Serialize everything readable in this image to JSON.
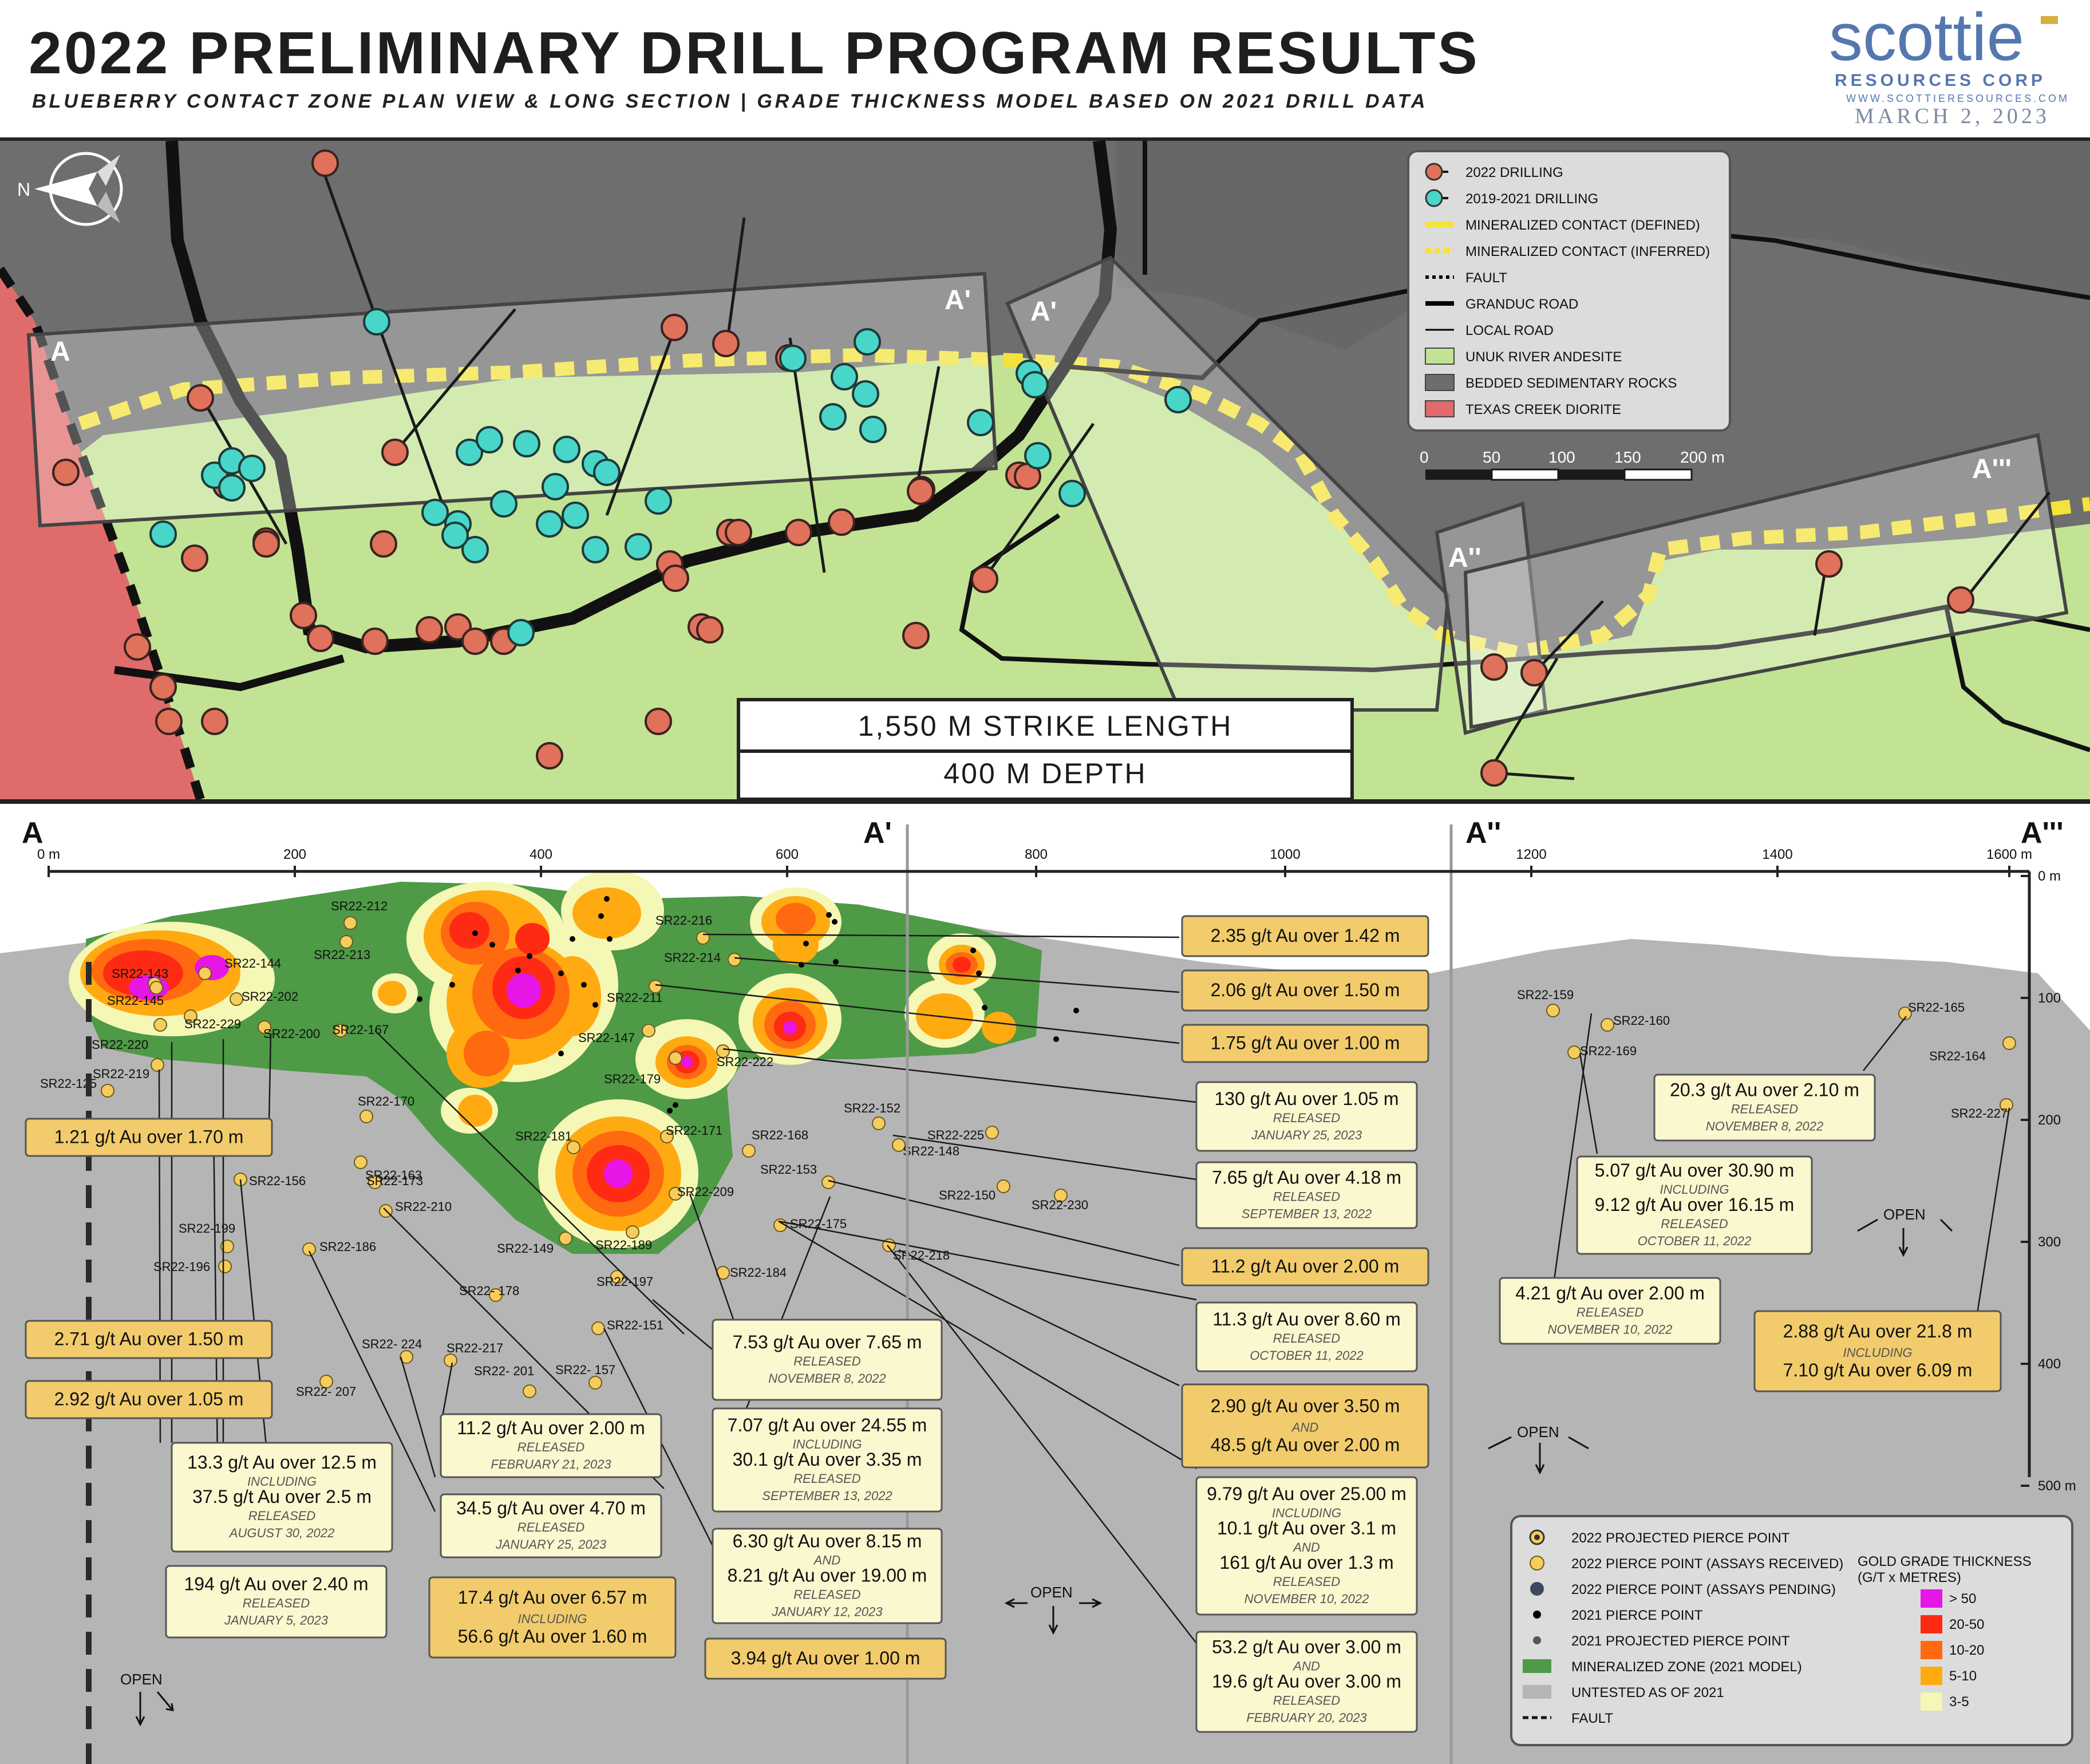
{
  "header": {
    "title": "2022 PRELIMINARY DRILL PROGRAM RESULTS",
    "subtitle": "BLUEBERRY CONTACT ZONE PLAN VIEW & LONG SECTION | GRADE THICKNESS MODEL BASED ON 2021 DRILL DATA"
  },
  "logo": {
    "name": "scottie",
    "company": "RESOURCES CORP",
    "website": "WWW.SCOTTIERESOURCES.COM",
    "date": "MARCH 2, 2023"
  },
  "plan": {
    "section_labels": [
      "A",
      "A'",
      "A'",
      "A''",
      "A'''"
    ],
    "strike_box": {
      "strike": "1,550 M STRIKE LENGTH",
      "depth": "400 M DEPTH"
    },
    "north_label": "N"
  },
  "plan_legend": {
    "items": [
      {
        "label": "2022 DRILLING",
        "symbol": "red-collar",
        "color": "#e0715a"
      },
      {
        "label": "2019-2021 DRILLING",
        "symbol": "cyan-collar",
        "color": "#48d6c9"
      },
      {
        "label": "MINERALIZED CONTACT (DEFINED)",
        "symbol": "yellow-line",
        "color": "#f3e33a"
      },
      {
        "label": "MINERALIZED CONTACT (INFERRED)",
        "symbol": "yellow-dash",
        "color": "#f3e33a"
      },
      {
        "label": "FAULT",
        "symbol": "black-dots",
        "color": "#000000"
      },
      {
        "label": "GRANDUC ROAD",
        "symbol": "thick-line",
        "color": "#000000"
      },
      {
        "label": "LOCAL ROAD",
        "symbol": "thin-line",
        "color": "#000000"
      },
      {
        "label": "UNUK RIVER ANDESITE",
        "symbol": "swatch",
        "color": "#c2e394"
      },
      {
        "label": "BEDDED SEDIMENTARY ROCKS",
        "symbol": "swatch",
        "color": "#6d6d6d"
      },
      {
        "label": "TEXAS CREEK DIORITE",
        "symbol": "swatch",
        "color": "#e06b6b"
      }
    ],
    "scale_labels": [
      "0",
      "50",
      "100",
      "150",
      "200 m"
    ]
  },
  "section": {
    "labels": [
      "A",
      "A'",
      "A''",
      "A'''"
    ],
    "x_ticks": [
      "0 m",
      "200",
      "400",
      "600",
      "800",
      "1000",
      "1200",
      "1400",
      "1600 m"
    ],
    "y_ticks": [
      "0 m",
      "100",
      "200",
      "300",
      "400",
      "500 m"
    ],
    "open_label": "OPEN",
    "holes": [
      "SR22-212",
      "SR22-213",
      "SR22-143",
      "SR22-144",
      "SR22-145",
      "SR22-202",
      "SR22-229",
      "SR22-200",
      "SR22-167",
      "SR22-220",
      "SR22-219",
      "SR22-125",
      "SR22-216",
      "SR22-214",
      "SR22-211",
      "SR22-147",
      "SR22-179",
      "SR22-222",
      "SR22-170",
      "SR22-181",
      "SR22-171",
      "SR22-168",
      "SR22-152",
      "SR22-225",
      "SR22-148",
      "SR22-153",
      "SR22-163",
      "SR22-173",
      "SR22-156",
      "SR22-210",
      "SR22-209",
      "SR22-150",
      "SR22-230",
      "SR22-175",
      "SR22-199",
      "SR22-196",
      "SR22-186",
      "SR22-149",
      "SR22-189",
      "SR22-218",
      "SR22-184",
      "SR22-197",
      "SR22- 178",
      "SR22-151",
      "SR22- 224",
      "SR22-217",
      "SR22- 201",
      "SR22- 157",
      "SR22- 207",
      "SR22-159",
      "SR22-160",
      "SR22-169",
      "SR22-165",
      "SR22-164",
      "SR22-227"
    ],
    "callouts": [
      {
        "lines": [
          "2.35 g/t Au over 1.42 m"
        ],
        "style": "gold"
      },
      {
        "lines": [
          "2.06 g/t Au over 1.50 m"
        ],
        "style": "gold"
      },
      {
        "lines": [
          "1.75 g/t Au over 1.00 m"
        ],
        "style": "gold"
      },
      {
        "lines": [
          "130 g/t Au over 1.05 m",
          "RELEASED",
          "JANUARY 25, 2023"
        ],
        "style": "cream"
      },
      {
        "lines": [
          "7.65 g/t Au over 4.18 m",
          "RELEASED",
          "SEPTEMBER 13, 2022"
        ],
        "style": "cream"
      },
      {
        "lines": [
          "11.2 g/t Au over 2.00 m"
        ],
        "style": "gold"
      },
      {
        "lines": [
          "11.3 g/t Au over 8.60 m",
          "RELEASED",
          "OCTOBER 11, 2022"
        ],
        "style": "cream"
      },
      {
        "lines": [
          "2.90 g/t Au over 3.50 m",
          "AND",
          "48.5 g/t Au over 2.00 m"
        ],
        "style": "gold"
      },
      {
        "lines": [
          "9.79 g/t Au over 25.00 m",
          "INCLUDING",
          "10.1 g/t Au over 3.1 m",
          "AND",
          "161 g/t Au over 1.3 m",
          "RELEASED",
          "NOVEMBER 10, 2022"
        ],
        "style": "cream"
      },
      {
        "lines": [
          "53.2 g/t Au over 3.00 m",
          "AND",
          "19.6 g/t Au over 3.00 m",
          "RELEASED",
          "FEBRUARY 20, 2023"
        ],
        "style": "cream"
      },
      {
        "lines": [
          "1.21 g/t Au over 1.70 m"
        ],
        "style": "gold"
      },
      {
        "lines": [
          "2.71 g/t Au over 1.50 m"
        ],
        "style": "gold"
      },
      {
        "lines": [
          "2.92 g/t Au over 1.05 m"
        ],
        "style": "gold"
      },
      {
        "lines": [
          "13.3 g/t Au over 12.5 m",
          "INCLUDING",
          "37.5 g/t Au over 2.5 m",
          "RELEASED",
          "AUGUST 30, 2022"
        ],
        "style": "cream"
      },
      {
        "lines": [
          "194 g/t Au over 2.40 m",
          "RELEASED",
          "JANUARY 5, 2023"
        ],
        "style": "cream"
      },
      {
        "lines": [
          "11.2 g/t Au over 2.00 m",
          "RELEASED",
          "FEBRUARY 21, 2023"
        ],
        "style": "cream"
      },
      {
        "lines": [
          "34.5 g/t Au over 4.70 m",
          "RELEASED",
          "JANUARY 25, 2023"
        ],
        "style": "cream"
      },
      {
        "lines": [
          "17.4 g/t Au over 6.57 m",
          "INCLUDING",
          "56.6 g/t Au over 1.60 m"
        ],
        "style": "gold"
      },
      {
        "lines": [
          "7.53 g/t Au over 7.65 m",
          "RELEASED",
          "NOVEMBER 8, 2022"
        ],
        "style": "cream"
      },
      {
        "lines": [
          "7.07 g/t Au over 24.55 m",
          "INCLUDING",
          "30.1 g/t Au over 3.35 m",
          "RELEASED",
          "SEPTEMBER 13, 2022"
        ],
        "style": "cream"
      },
      {
        "lines": [
          "6.30 g/t Au over 8.15 m",
          "AND",
          "8.21 g/t Au over 19.00 m",
          "RELEASED",
          "JANUARY 12, 2023"
        ],
        "style": "cream"
      },
      {
        "lines": [
          "3.94 g/t Au over 1.00 m"
        ],
        "style": "gold"
      },
      {
        "lines": [
          "20.3 g/t Au over 2.10 m",
          "RELEASED",
          "NOVEMBER 8, 2022"
        ],
        "style": "cream"
      },
      {
        "lines": [
          "5.07 g/t Au over 30.90 m",
          "INCLUDING",
          "9.12 g/t Au over 16.15 m",
          "RELEASED",
          "OCTOBER 11, 2022"
        ],
        "style": "cream"
      },
      {
        "lines": [
          "4.21 g/t Au over 2.00 m",
          "RELEASED",
          "NOVEMBER 10, 2022"
        ],
        "style": "cream"
      },
      {
        "lines": [
          "2.88 g/t Au over 21.8 m",
          "INCLUDING",
          "7.10 g/t Au over 6.09 m"
        ],
        "style": "gold"
      }
    ]
  },
  "section_legend": {
    "items": [
      {
        "label": "2022 PROJECTED PIERCE POINT",
        "symbol": "proj-yellow"
      },
      {
        "label": "2022 PIERCE POINT (ASSAYS RECEIVED)",
        "symbol": "yellow-dot"
      },
      {
        "label": "2022 PIERCE POINT (ASSAYS PENDING)",
        "symbol": "slate-dot"
      },
      {
        "label": "2021 PIERCE POINT",
        "symbol": "black-dot"
      },
      {
        "label": "2021 PROJECTED PIERCE POINT",
        "symbol": "grey-dot"
      },
      {
        "label": "MINERALIZED ZONE (2021 MODEL)",
        "symbol": "green-swatch"
      },
      {
        "label": "UNTESTED AS OF 2021",
        "symbol": "grey-swatch"
      },
      {
        "label": "FAULT",
        "symbol": "dash"
      }
    ],
    "grade_title": [
      "GOLD GRADE THICKNESS",
      "(G/T x METRES)"
    ],
    "grade_classes": [
      {
        "label": "> 50",
        "color": "#e616e6"
      },
      {
        "label": "20-50",
        "color": "#ff2a14"
      },
      {
        "label": "10-20",
        "color": "#ff6a10"
      },
      {
        "label": "5-10",
        "color": "#ffaa10"
      },
      {
        "label": "3-5",
        "color": "#f5f7b4"
      }
    ]
  }
}
